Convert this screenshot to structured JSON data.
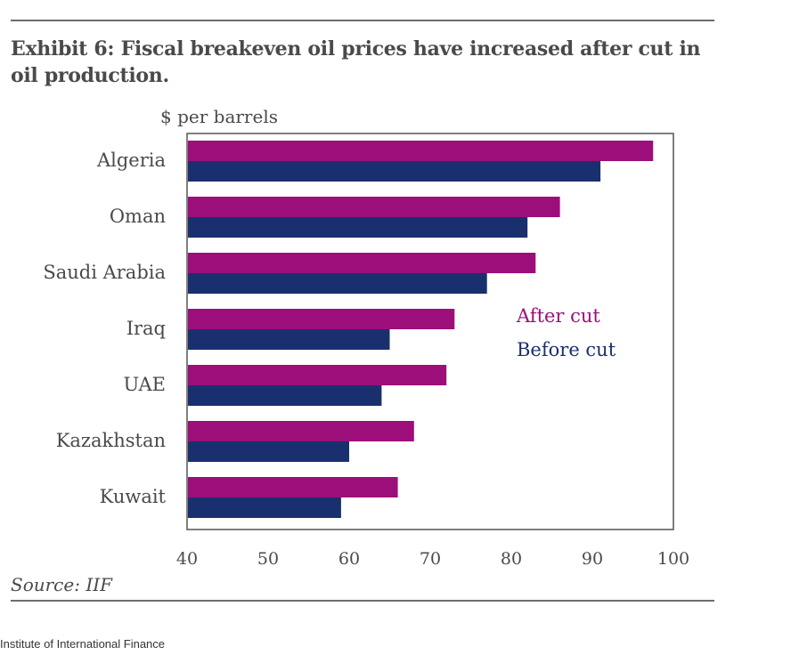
{
  "title": "Exhibit 6: Fiscal breakeven oil prices have increased after cut in oil production.",
  "source": "Source: IIF",
  "caption": "Institute of International Finance",
  "colors": {
    "after": "#9c0f7a",
    "before": "#1a2f6e",
    "text": "#4a4a4a",
    "frame": "#555555"
  },
  "chart_data": {
    "type": "bar",
    "orientation": "horizontal",
    "unit_label": "$ per barrels",
    "categories": [
      "Algeria",
      "Oman",
      "Saudi Arabia",
      "Iraq",
      "UAE",
      "Kazakhstan",
      "Kuwait"
    ],
    "series": [
      {
        "name": "After cut",
        "color": "#9c0f7a",
        "values": [
          97.5,
          86,
          83,
          73,
          72,
          68,
          66
        ]
      },
      {
        "name": "Before cut",
        "color": "#1a2f6e",
        "values": [
          91,
          82,
          77,
          65,
          64,
          60,
          59
        ]
      }
    ],
    "xlim": [
      40,
      100
    ],
    "xticks": [
      "40",
      "50",
      "60",
      "70",
      "80",
      "90",
      "100"
    ],
    "legend_position": "right-middle",
    "grid": false
  }
}
